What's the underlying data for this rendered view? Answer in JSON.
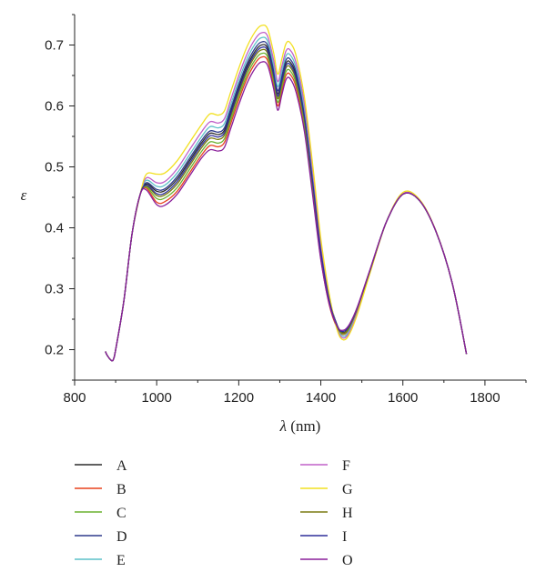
{
  "chart_data": {
    "type": "line",
    "xlabel_symbol": "λ",
    "xlabel_unit": " (nm)",
    "ylabel": "ε",
    "xlim": [
      800,
      1900
    ],
    "ylim": [
      0.15,
      0.75
    ],
    "xticks": [
      800,
      1000,
      1200,
      1400,
      1600,
      1800
    ],
    "xtick_labels": [
      "800",
      "1000",
      "1200",
      "1400",
      "1600",
      "1800"
    ],
    "yticks": [
      0.2,
      0.3,
      0.4,
      0.5,
      0.6,
      0.7
    ],
    "ytick_labels": [
      "0.2",
      "0.3",
      "0.4",
      "0.5",
      "0.6",
      "0.7"
    ],
    "grid": false,
    "legend_position": "bottom",
    "x": [
      875,
      880,
      890,
      895,
      900,
      920,
      940,
      960,
      975,
      1000,
      1020,
      1050,
      1080,
      1110,
      1130,
      1150,
      1165,
      1180,
      1200,
      1220,
      1240,
      1255,
      1270,
      1285,
      1295,
      1305,
      1315,
      1325,
      1340,
      1360,
      1380,
      1400,
      1420,
      1440,
      1455,
      1470,
      1490,
      1520,
      1560,
      1600,
      1640,
      1680,
      1720,
      1755
    ],
    "series": [
      {
        "name": "A",
        "color": "#2b2b2b",
        "values": [
          0.197,
          0.19,
          0.182,
          0.185,
          0.2,
          0.28,
          0.39,
          0.455,
          0.472,
          0.46,
          0.461,
          0.48,
          0.51,
          0.54,
          0.555,
          0.553,
          0.56,
          0.59,
          0.63,
          0.665,
          0.69,
          0.7,
          0.695,
          0.655,
          0.62,
          0.645,
          0.67,
          0.672,
          0.65,
          0.585,
          0.48,
          0.365,
          0.285,
          0.24,
          0.228,
          0.238,
          0.27,
          0.33,
          0.41,
          0.455,
          0.445,
          0.395,
          0.31,
          0.193
        ]
      },
      {
        "name": "B",
        "color": "#e8401c",
        "values": [
          0.197,
          0.19,
          0.182,
          0.185,
          0.2,
          0.28,
          0.39,
          0.455,
          0.465,
          0.442,
          0.443,
          0.46,
          0.49,
          0.52,
          0.535,
          0.533,
          0.54,
          0.57,
          0.61,
          0.645,
          0.67,
          0.68,
          0.675,
          0.635,
          0.6,
          0.625,
          0.65,
          0.652,
          0.63,
          0.565,
          0.46,
          0.35,
          0.275,
          0.235,
          0.225,
          0.235,
          0.268,
          0.33,
          0.41,
          0.455,
          0.445,
          0.395,
          0.31,
          0.193
        ]
      },
      {
        "name": "C",
        "color": "#6ab22e",
        "values": [
          0.197,
          0.19,
          0.182,
          0.185,
          0.2,
          0.28,
          0.39,
          0.455,
          0.467,
          0.448,
          0.449,
          0.466,
          0.496,
          0.526,
          0.541,
          0.539,
          0.546,
          0.576,
          0.616,
          0.651,
          0.676,
          0.686,
          0.681,
          0.641,
          0.606,
          0.631,
          0.656,
          0.658,
          0.636,
          0.571,
          0.466,
          0.354,
          0.278,
          0.236,
          0.226,
          0.236,
          0.269,
          0.33,
          0.41,
          0.455,
          0.445,
          0.395,
          0.31,
          0.193
        ]
      },
      {
        "name": "D",
        "color": "#2e3a8c",
        "values": [
          0.197,
          0.19,
          0.182,
          0.185,
          0.2,
          0.28,
          0.39,
          0.455,
          0.474,
          0.463,
          0.464,
          0.484,
          0.514,
          0.544,
          0.559,
          0.557,
          0.564,
          0.594,
          0.635,
          0.67,
          0.695,
          0.705,
          0.7,
          0.66,
          0.625,
          0.65,
          0.675,
          0.677,
          0.655,
          0.59,
          0.484,
          0.368,
          0.286,
          0.239,
          0.227,
          0.237,
          0.27,
          0.33,
          0.41,
          0.455,
          0.445,
          0.395,
          0.31,
          0.193
        ]
      },
      {
        "name": "E",
        "color": "#5cc1c8",
        "values": [
          0.197,
          0.19,
          0.182,
          0.185,
          0.2,
          0.28,
          0.39,
          0.455,
          0.478,
          0.468,
          0.47,
          0.49,
          0.52,
          0.55,
          0.566,
          0.564,
          0.571,
          0.601,
          0.642,
          0.677,
          0.702,
          0.712,
          0.707,
          0.667,
          0.632,
          0.657,
          0.682,
          0.684,
          0.662,
          0.596,
          0.49,
          0.372,
          0.288,
          0.236,
          0.222,
          0.232,
          0.266,
          0.328,
          0.41,
          0.455,
          0.445,
          0.395,
          0.31,
          0.193
        ]
      },
      {
        "name": "F",
        "color": "#c060c8",
        "values": [
          0.197,
          0.19,
          0.182,
          0.185,
          0.2,
          0.28,
          0.39,
          0.455,
          0.482,
          0.474,
          0.476,
          0.497,
          0.528,
          0.558,
          0.574,
          0.572,
          0.579,
          0.609,
          0.65,
          0.685,
          0.71,
          0.72,
          0.715,
          0.675,
          0.64,
          0.665,
          0.69,
          0.692,
          0.67,
          0.603,
          0.496,
          0.376,
          0.29,
          0.234,
          0.219,
          0.229,
          0.263,
          0.327,
          0.41,
          0.456,
          0.446,
          0.395,
          0.31,
          0.193
        ]
      },
      {
        "name": "G",
        "color": "#f2e020",
        "values": [
          0.197,
          0.19,
          0.182,
          0.185,
          0.2,
          0.28,
          0.39,
          0.455,
          0.488,
          0.488,
          0.49,
          0.51,
          0.54,
          0.57,
          0.587,
          0.585,
          0.592,
          0.622,
          0.662,
          0.697,
          0.722,
          0.732,
          0.727,
          0.687,
          0.652,
          0.677,
          0.702,
          0.704,
          0.682,
          0.614,
          0.505,
          0.383,
          0.293,
          0.232,
          0.216,
          0.226,
          0.26,
          0.326,
          0.41,
          0.458,
          0.447,
          0.396,
          0.31,
          0.193
        ]
      },
      {
        "name": "H",
        "color": "#7a7a10",
        "values": [
          0.197,
          0.19,
          0.182,
          0.185,
          0.2,
          0.28,
          0.39,
          0.455,
          0.469,
          0.453,
          0.454,
          0.472,
          0.502,
          0.532,
          0.547,
          0.545,
          0.552,
          0.582,
          0.622,
          0.657,
          0.682,
          0.692,
          0.687,
          0.647,
          0.612,
          0.637,
          0.662,
          0.664,
          0.642,
          0.577,
          0.472,
          0.359,
          0.281,
          0.237,
          0.227,
          0.237,
          0.269,
          0.33,
          0.41,
          0.455,
          0.445,
          0.395,
          0.31,
          0.193
        ]
      },
      {
        "name": "I",
        "color": "#2f2f9a",
        "values": [
          0.197,
          0.19,
          0.182,
          0.185,
          0.2,
          0.28,
          0.39,
          0.455,
          0.47,
          0.456,
          0.457,
          0.476,
          0.506,
          0.536,
          0.551,
          0.549,
          0.556,
          0.586,
          0.626,
          0.661,
          0.686,
          0.696,
          0.691,
          0.651,
          0.616,
          0.641,
          0.666,
          0.668,
          0.646,
          0.581,
          0.476,
          0.362,
          0.283,
          0.238,
          0.23,
          0.24,
          0.271,
          0.331,
          0.41,
          0.455,
          0.445,
          0.395,
          0.31,
          0.193
        ]
      },
      {
        "name": "O",
        "color": "#8a1f9a",
        "values": [
          0.197,
          0.19,
          0.182,
          0.185,
          0.2,
          0.28,
          0.39,
          0.455,
          0.462,
          0.438,
          0.437,
          0.455,
          0.485,
          0.515,
          0.528,
          0.526,
          0.532,
          0.562,
          0.602,
          0.637,
          0.662,
          0.672,
          0.667,
          0.628,
          0.593,
          0.618,
          0.643,
          0.645,
          0.622,
          0.558,
          0.454,
          0.348,
          0.276,
          0.238,
          0.232,
          0.242,
          0.272,
          0.332,
          0.41,
          0.455,
          0.445,
          0.395,
          0.31,
          0.193
        ]
      }
    ]
  }
}
